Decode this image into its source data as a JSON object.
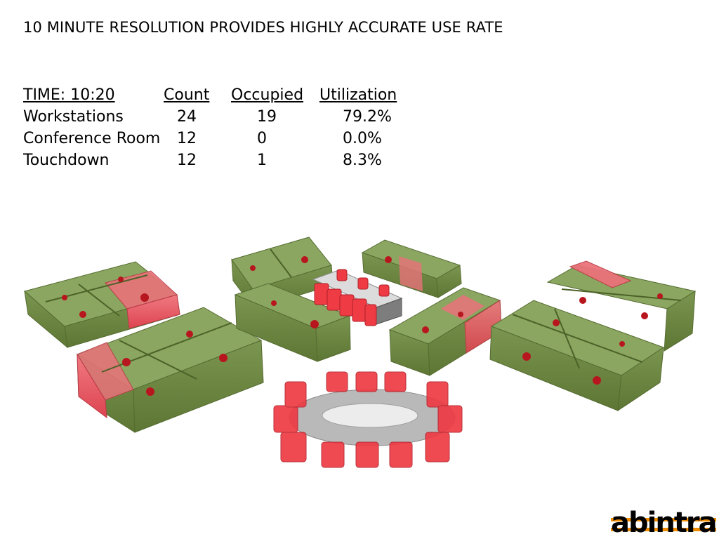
{
  "title": "10 MINUTE RESOLUTION PROVIDES HIGHLY ACCURATE USE RATE",
  "table": {
    "headers": [
      "TIME: 10:20",
      "Count",
      "Occupied",
      "Utilization"
    ],
    "rows": [
      {
        "label": "Workstations",
        "count": "24",
        "occupied": "19",
        "utilization": "79.2%"
      },
      {
        "label": "Conference Room",
        "count": "12",
        "occupied": "0",
        "utilization": "0.0%"
      },
      {
        "label": "Touchdown",
        "count": "12",
        "occupied": "1",
        "utilization": "8.3%"
      }
    ]
  },
  "colors": {
    "occupied": "#6f8a3f",
    "unoccupied": "#e8505b",
    "logo_accent": "#f08c00"
  },
  "logo": {
    "text": "abintra"
  }
}
